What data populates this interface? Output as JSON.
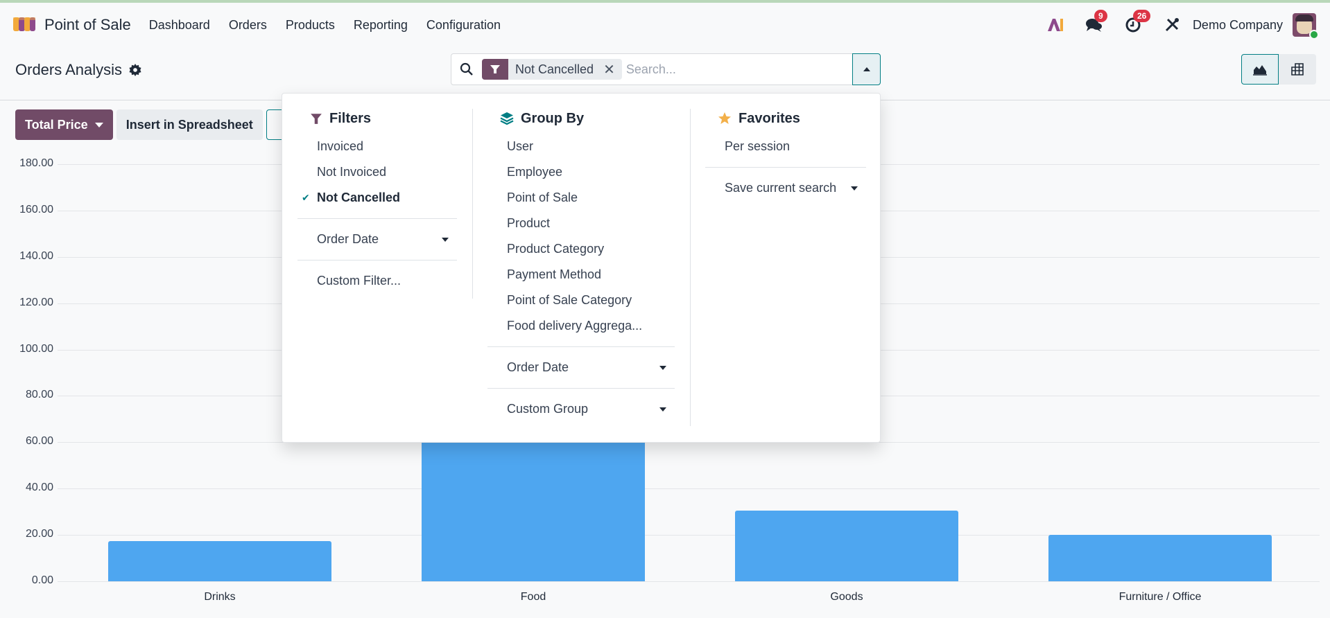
{
  "navbar": {
    "app_title": "Point of Sale",
    "menu": [
      "Dashboard",
      "Orders",
      "Products",
      "Reporting",
      "Configuration"
    ],
    "messages_badge": "9",
    "activities_badge": "26",
    "company": "Demo Company"
  },
  "control": {
    "page_title": "Orders Analysis",
    "search": {
      "facet_label": "Not Cancelled",
      "placeholder": "Search..."
    },
    "views": [
      "graph",
      "pivot"
    ],
    "active_view": "graph"
  },
  "actions": {
    "measure_label": "Total Price",
    "insert_label": "Insert in Spreadsheet"
  },
  "dropdown": {
    "filters": {
      "title": "Filters",
      "items": [
        {
          "label": "Invoiced",
          "checked": false
        },
        {
          "label": "Not Invoiced",
          "checked": false
        },
        {
          "label": "Not Cancelled",
          "checked": true
        }
      ],
      "date_label": "Order Date",
      "custom_label": "Custom Filter..."
    },
    "groupby": {
      "title": "Group By",
      "items": [
        "User",
        "Employee",
        "Point of Sale",
        "Product",
        "Product Category",
        "Payment Method",
        "Point of Sale Category",
        "Food delivery Aggrega..."
      ],
      "date_label": "Order Date",
      "custom_label": "Custom Group"
    },
    "favorites": {
      "title": "Favorites",
      "items": [
        "Per session"
      ],
      "save_label": "Save current search"
    }
  },
  "colors": {
    "brand": "#714b67",
    "accent": "#017e84",
    "bar": "#4ea6f0",
    "badge": "#dc3545"
  },
  "chart_data": {
    "type": "bar",
    "title": "",
    "categories": [
      "Drinks",
      "Food",
      "Goods",
      "Furniture / Office"
    ],
    "series": [
      {
        "name": "Total Price",
        "values": [
          17.2,
          180.0,
          30.4,
          20.0
        ]
      }
    ],
    "xlabel": "",
    "ylabel": "Total Price",
    "ylim": [
      0,
      180
    ],
    "y_ticks": [
      "0.00",
      "20.00",
      "40.00",
      "60.00",
      "80.00",
      "100.00",
      "120.00",
      "140.00",
      "160.00",
      "180.00"
    ],
    "grid": true,
    "legend": "none",
    "note": "Food bar top partially occluded by dropdown; value estimated"
  }
}
